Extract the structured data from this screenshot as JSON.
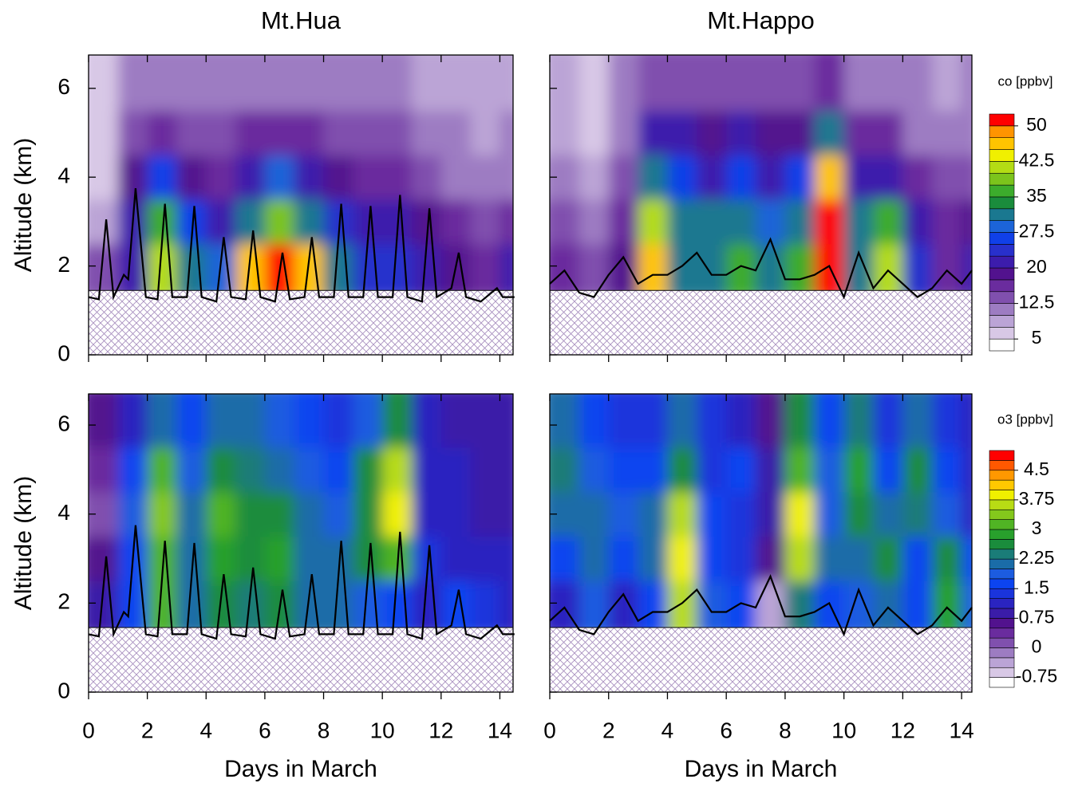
{
  "chart_data": [
    {
      "type": "contour",
      "title": "Mt.Hua",
      "ylabel": "Altitude (km)",
      "xlim": [
        0,
        14.45
      ],
      "ylim": [
        0,
        6.75
      ],
      "xticks": [
        0,
        2,
        4,
        6,
        8,
        10,
        12,
        14
      ],
      "yticks": [
        0,
        2,
        4,
        6
      ],
      "xtick_labels": false,
      "ytick_labels": true,
      "colorbar": 0,
      "terrain_height": 1.45,
      "field": {
        "x": [
          0,
          1,
          2,
          3,
          4,
          5,
          6,
          7,
          8,
          9,
          10,
          11,
          12,
          13,
          14
        ],
        "y": [
          1.45,
          2.5,
          3.5,
          4.5,
          5.5
        ],
        "z": [
          [
            14,
            22,
            40,
            30,
            28,
            45,
            50,
            45,
            30,
            24,
            24,
            22,
            18,
            16,
            22
          ],
          [
            8,
            20,
            35,
            25,
            22,
            32,
            38,
            30,
            24,
            20,
            20,
            18,
            15,
            14,
            15
          ],
          [
            5,
            18,
            25,
            18,
            16,
            22,
            28,
            20,
            18,
            16,
            16,
            14,
            12,
            12,
            12
          ],
          [
            5,
            14,
            16,
            14,
            14,
            15,
            17,
            15,
            14,
            13,
            13,
            12,
            10,
            9,
            10
          ],
          [
            6,
            10,
            10,
            11,
            12,
            11,
            11,
            11,
            11,
            11,
            10,
            9,
            8,
            8,
            9
          ]
        ]
      },
      "line": {
        "color": "#000000",
        "x": [
          0,
          0.35,
          0.6,
          0.85,
          1.2,
          1.35,
          1.6,
          1.95,
          2.35,
          2.6,
          2.85,
          3.35,
          3.6,
          3.85,
          4.35,
          4.6,
          4.85,
          5.35,
          5.6,
          5.85,
          6.35,
          6.6,
          6.85,
          7.35,
          7.6,
          7.85,
          8.35,
          8.6,
          8.85,
          9.35,
          9.6,
          9.85,
          10.35,
          10.6,
          10.85,
          11.35,
          11.6,
          11.85,
          12.35,
          12.6,
          12.85,
          13.35,
          13.9,
          14.1,
          14.5
        ],
        "values": [
          1.3,
          1.25,
          3.05,
          1.3,
          1.8,
          1.7,
          3.75,
          1.3,
          1.25,
          3.4,
          1.3,
          1.3,
          3.35,
          1.3,
          1.2,
          2.65,
          1.3,
          1.25,
          2.8,
          1.3,
          1.2,
          2.3,
          1.25,
          1.3,
          2.65,
          1.3,
          1.3,
          3.4,
          1.3,
          1.3,
          3.35,
          1.3,
          1.3,
          3.6,
          1.3,
          1.2,
          3.3,
          1.3,
          1.5,
          2.3,
          1.3,
          1.2,
          1.5,
          1.3,
          1.3
        ]
      }
    },
    {
      "type": "contour",
      "title": "Mt.Happo",
      "xlim": [
        0,
        14.35
      ],
      "ylim": [
        0,
        6.75
      ],
      "xticks": [
        0,
        2,
        4,
        6,
        8,
        10,
        12,
        14
      ],
      "yticks": [
        0,
        2,
        4,
        6
      ],
      "xtick_labels": false,
      "ytick_labels": false,
      "colorbar": 0,
      "terrain_height": 1.45,
      "field": {
        "x": [
          0,
          1,
          2,
          3,
          4,
          5,
          6,
          7,
          8,
          9,
          10,
          11,
          12,
          13,
          14
        ],
        "y": [
          1.45,
          2.5,
          3.5,
          4.5,
          5.5
        ],
        "z": [
          [
            16,
            14,
            18,
            45,
            30,
            32,
            35,
            30,
            36,
            50,
            32,
            40,
            24,
            16,
            22
          ],
          [
            14,
            12,
            16,
            40,
            32,
            30,
            30,
            28,
            32,
            50,
            30,
            35,
            22,
            16,
            18
          ],
          [
            10,
            9,
            14,
            30,
            25,
            20,
            26,
            22,
            25,
            45,
            22,
            20,
            16,
            14,
            14
          ],
          [
            8,
            5,
            10,
            20,
            22,
            18,
            20,
            18,
            18,
            30,
            16,
            15,
            12,
            12,
            12
          ],
          [
            8,
            6,
            10,
            13,
            14,
            13,
            14,
            13,
            13,
            15,
            11,
            11,
            10,
            9,
            10
          ]
        ]
      },
      "line": {
        "color": "#000000",
        "x": [
          0,
          0.5,
          1,
          1.5,
          2,
          2.5,
          3,
          3.5,
          4,
          4.5,
          5,
          5.5,
          6,
          6.5,
          7,
          7.5,
          8,
          8.5,
          9,
          9.5,
          10,
          10.5,
          11,
          11.5,
          12,
          12.5,
          13,
          13.5,
          14,
          14.35
        ],
        "values": [
          1.6,
          1.9,
          1.4,
          1.3,
          1.8,
          2.2,
          1.6,
          1.8,
          1.8,
          2.0,
          2.3,
          1.8,
          1.8,
          2.0,
          1.9,
          2.6,
          1.7,
          1.7,
          1.8,
          2.0,
          1.3,
          2.3,
          1.5,
          1.9,
          1.6,
          1.3,
          1.5,
          1.9,
          1.6,
          1.9
        ]
      }
    },
    {
      "type": "contour",
      "xlabel": "Days in March",
      "ylabel": "Altitude (km)",
      "xlim": [
        0,
        14.45
      ],
      "ylim": [
        0,
        6.7
      ],
      "xticks": [
        0,
        2,
        4,
        6,
        8,
        10,
        12,
        14
      ],
      "yticks": [
        0,
        2,
        4,
        6
      ],
      "xtick_labels": true,
      "ytick_labels": true,
      "colorbar": 1,
      "terrain_height": 1.45,
      "field": {
        "x": [
          0,
          1,
          2,
          3,
          4,
          5,
          6,
          7,
          8,
          9,
          10,
          11,
          12,
          13,
          14
        ],
        "y": [
          1.45,
          2.5,
          3.5,
          4.5,
          5.5
        ],
        "z": [
          [
            0.8,
            1.5,
            3,
            2.0,
            2.5,
            2.4,
            2.5,
            2.2,
            2,
            1.8,
            1.6,
            1.2,
            1.5,
            1.4,
            1.2
          ],
          [
            0.5,
            1.6,
            3.2,
            2.2,
            2.8,
            2.5,
            2.8,
            2.2,
            2,
            2.6,
            3.2,
            1.4,
            1.2,
            1.0,
            1.0
          ],
          [
            0.2,
            1.8,
            3.3,
            2.0,
            3.0,
            2.6,
            2.6,
            2.0,
            1.8,
            2.5,
            3.8,
            1.2,
            1.0,
            0.9,
            0.9
          ],
          [
            0.4,
            1.6,
            3.0,
            1.8,
            2.6,
            2.4,
            2.2,
            1.8,
            1.6,
            2.6,
            3.6,
            1.2,
            1.0,
            0.9,
            0.8
          ],
          [
            0.6,
            1.2,
            2.2,
            1.6,
            2.0,
            2.2,
            1.8,
            1.6,
            1.4,
            1.8,
            2.5,
            1.0,
            0.9,
            0.8,
            0.8
          ]
        ]
      },
      "line": {
        "color": "#000000",
        "x": [
          0,
          0.35,
          0.6,
          0.85,
          1.2,
          1.35,
          1.6,
          1.95,
          2.35,
          2.6,
          2.85,
          3.35,
          3.6,
          3.85,
          4.35,
          4.6,
          4.85,
          5.35,
          5.6,
          5.85,
          6.35,
          6.6,
          6.85,
          7.35,
          7.6,
          7.85,
          8.35,
          8.6,
          8.85,
          9.35,
          9.6,
          9.85,
          10.35,
          10.6,
          10.85,
          11.35,
          11.6,
          11.85,
          12.35,
          12.6,
          12.85,
          13.35,
          13.9,
          14.1,
          14.5
        ],
        "values": [
          1.3,
          1.25,
          3.05,
          1.3,
          1.8,
          1.7,
          3.75,
          1.3,
          1.25,
          3.4,
          1.3,
          1.3,
          3.35,
          1.3,
          1.2,
          2.65,
          1.3,
          1.25,
          2.8,
          1.3,
          1.2,
          2.3,
          1.25,
          1.3,
          2.65,
          1.3,
          1.3,
          3.4,
          1.3,
          1.3,
          3.35,
          1.3,
          1.3,
          3.6,
          1.3,
          1.2,
          3.3,
          1.3,
          1.5,
          2.3,
          1.3,
          1.2,
          1.5,
          1.3,
          1.3
        ]
      }
    },
    {
      "type": "contour",
      "xlabel": "Days in March",
      "xlim": [
        0,
        14.35
      ],
      "ylim": [
        0,
        6.7
      ],
      "xticks": [
        0,
        2,
        4,
        6,
        8,
        10,
        12,
        14
      ],
      "yticks": [
        0,
        2,
        4,
        6
      ],
      "xtick_labels": true,
      "ytick_labels": false,
      "colorbar": 1,
      "terrain_height": 1.45,
      "field": {
        "x": [
          0,
          1,
          2,
          3,
          4,
          5,
          6,
          7,
          8,
          9,
          10,
          11,
          12,
          13,
          14
        ],
        "y": [
          1.45,
          2.5,
          3.5,
          4.5,
          5.5
        ],
        "z": [
          [
            1.2,
            1.8,
            1.2,
            1.5,
            3.5,
            1.8,
            1.5,
            -0.5,
            2.4,
            1.6,
            1.8,
            2.2,
            1.5,
            2.8,
            1.8
          ],
          [
            1.5,
            2.0,
            1.5,
            2.2,
            3.8,
            1.6,
            1.4,
            0.5,
            3.5,
            2.0,
            2.0,
            2.5,
            1.6,
            2.6,
            1.5
          ],
          [
            2.0,
            2.2,
            1.8,
            2.0,
            3.6,
            1.6,
            1.4,
            0.8,
            3.8,
            1.8,
            2.6,
            2.0,
            2.4,
            1.8,
            1.2
          ],
          [
            2.4,
            1.8,
            1.5,
            1.6,
            2.6,
            1.4,
            1.5,
            0.8,
            3.2,
            1.8,
            2.8,
            1.6,
            2.6,
            1.6,
            1.2
          ],
          [
            2.0,
            1.5,
            1.4,
            1.4,
            2.0,
            1.4,
            1.2,
            0.6,
            2.5,
            1.6,
            2.4,
            1.4,
            2.0,
            1.4,
            1.2
          ]
        ]
      },
      "line": {
        "color": "#000000",
        "x": [
          0,
          0.5,
          1,
          1.5,
          2,
          2.5,
          3,
          3.5,
          4,
          4.5,
          5,
          5.5,
          6,
          6.5,
          7,
          7.5,
          8,
          8.5,
          9,
          9.5,
          10,
          10.5,
          11,
          11.5,
          12,
          12.5,
          13,
          13.5,
          14,
          14.35
        ],
        "values": [
          1.6,
          1.9,
          1.4,
          1.3,
          1.8,
          2.2,
          1.6,
          1.8,
          1.8,
          2.0,
          2.3,
          1.8,
          1.8,
          2.0,
          1.9,
          2.6,
          1.7,
          1.7,
          1.8,
          2.0,
          1.3,
          2.3,
          1.5,
          1.9,
          1.6,
          1.3,
          1.5,
          1.9,
          1.6,
          1.9
        ]
      }
    }
  ],
  "colorbars": [
    {
      "label": "co [ppbv]",
      "levels": [
        5,
        7.5,
        10,
        12.5,
        15,
        17.5,
        20,
        22.5,
        25,
        27.5,
        30,
        32.5,
        35,
        37.5,
        40,
        42.5,
        45,
        47.5,
        50
      ],
      "colors": [
        "#ffffff",
        "#d8c8e6",
        "#bba4d6",
        "#9d7cc2",
        "#8050ae",
        "#6a2c9e",
        "#52128e",
        "#3c1cac",
        "#2830cc",
        "#1040e8",
        "#1c64d8",
        "#1a7890",
        "#1a8c3c",
        "#3cac2c",
        "#7cc41c",
        "#b4dc14",
        "#f0f000",
        "#ffc400",
        "#ff9400",
        "#ff0000"
      ],
      "ticks": [
        5,
        12.5,
        20,
        27.5,
        35,
        42.5,
        50
      ]
    },
    {
      "label": "o3 [ppbv]",
      "levels": [
        -0.75,
        -0.5,
        -0.25,
        0,
        0.25,
        0.5,
        0.75,
        1,
        1.25,
        1.5,
        1.75,
        2,
        2.25,
        2.5,
        2.75,
        3,
        3.25,
        3.5,
        3.75,
        4,
        4.25,
        4.5,
        4.75
      ],
      "colors": [
        "#ffffff",
        "#d8c8e6",
        "#bba4d6",
        "#9d7cc2",
        "#8050ae",
        "#6a2c9e",
        "#52128e",
        "#3a1ca8",
        "#2a24c0",
        "#1a34dc",
        "#0c44f0",
        "#1c5ce0",
        "#1a6ca8",
        "#1a7c78",
        "#1a8c3c",
        "#28a02c",
        "#50b424",
        "#84c81c",
        "#b8dc14",
        "#f0f000",
        "#ffc800",
        "#ff9800",
        "#ff5800",
        "#ff0000"
      ],
      "ticks": [
        -0.75,
        0,
        0.75,
        1.5,
        2.25,
        3,
        3.75,
        4.5
      ]
    }
  ]
}
